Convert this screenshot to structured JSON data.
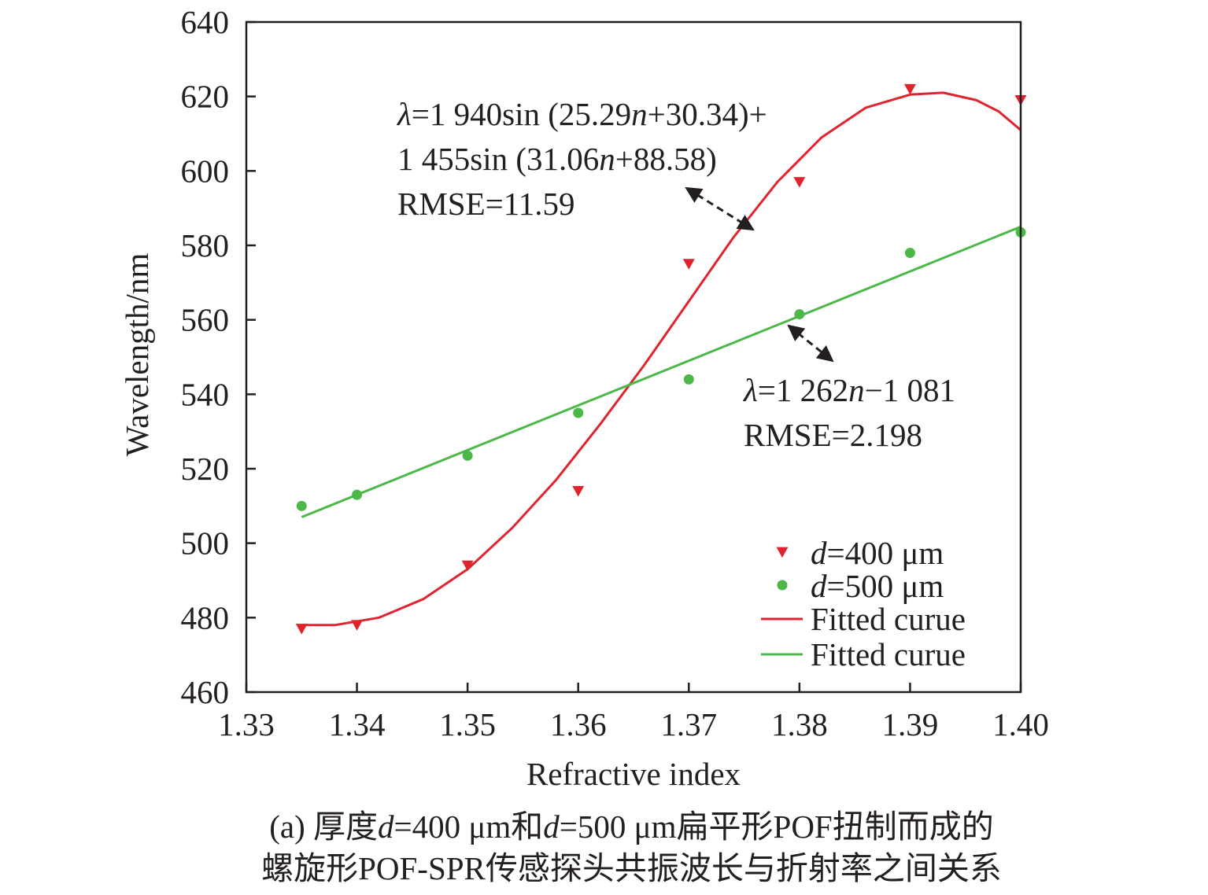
{
  "chart_data": {
    "type": "scatter",
    "xlabel": "Refractive index",
    "ylabel": "Wavelength/nm",
    "xlim": [
      1.33,
      1.4
    ],
    "ylim": [
      460,
      640
    ],
    "xticks": [
      "1.33",
      "1.34",
      "1.35",
      "1.36",
      "1.37",
      "1.38",
      "1.39",
      "1.40"
    ],
    "yticks": [
      "460",
      "480",
      "500",
      "520",
      "540",
      "560",
      "580",
      "600",
      "620",
      "640"
    ],
    "grid": false,
    "legend_position": "bottom-right",
    "series": [
      {
        "name": "d=400 μm",
        "legend_prefix": "d",
        "legend_suffix": "=400 μm",
        "marker": "triangle-down",
        "color": "#e0242f",
        "x": [
          1.335,
          1.34,
          1.35,
          1.36,
          1.37,
          1.38,
          1.39,
          1.4
        ],
        "y": [
          477,
          478,
          494,
          514,
          575,
          597,
          622,
          619
        ]
      },
      {
        "name": "d=500 μm",
        "legend_prefix": "d",
        "legend_suffix": "=500 μm",
        "marker": "circle",
        "color": "#4cb848",
        "x": [
          1.335,
          1.34,
          1.35,
          1.36,
          1.37,
          1.38,
          1.39,
          1.4
        ],
        "y": [
          510,
          513,
          523.5,
          535,
          544,
          561.5,
          578,
          583.5
        ]
      }
    ],
    "fits": [
      {
        "name": "Fitted curue",
        "color": "#e0242f",
        "x": [
          1.335,
          1.338,
          1.342,
          1.346,
          1.35,
          1.354,
          1.358,
          1.362,
          1.366,
          1.37,
          1.374,
          1.378,
          1.382,
          1.386,
          1.39,
          1.393,
          1.396,
          1.398,
          1.4
        ],
        "y": [
          478,
          478,
          480,
          485,
          493,
          504,
          517,
          532,
          548,
          565,
          582,
          597,
          609,
          617,
          620.5,
          621,
          619,
          616,
          611
        ]
      },
      {
        "name": "Fitted curue",
        "color": "#4cb848",
        "x": [
          1.335,
          1.4
        ],
        "y": [
          507,
          585
        ]
      }
    ],
    "annotations": [
      {
        "lines": [
          {
            "lambda": "λ",
            "a": "=1 940sin (25.29",
            "n": "n",
            "b": "+30.34)+"
          },
          {
            "a": "1 455sin (31.06",
            "n": "n",
            "b": "+88.58)"
          },
          {
            "a": "RMSE=11.59"
          }
        ]
      },
      {
        "lines": [
          {
            "lambda": "λ",
            "a": "=1 262",
            "n": "n",
            "b": "−1 081"
          },
          {
            "a": "RMSE=2.198"
          }
        ]
      }
    ]
  },
  "caption": {
    "line1": [
      {
        "t": "(a) 厚度",
        "i": false
      },
      {
        "t": "d",
        "i": true
      },
      {
        "t": "=400 μm和",
        "i": false
      },
      {
        "t": "d",
        "i": true
      },
      {
        "t": "=500 μm扁平形POF扭制而成的",
        "i": false
      }
    ],
    "line2": "螺旋形POF-SPR传感探头共振波长与折射率之间关系"
  }
}
